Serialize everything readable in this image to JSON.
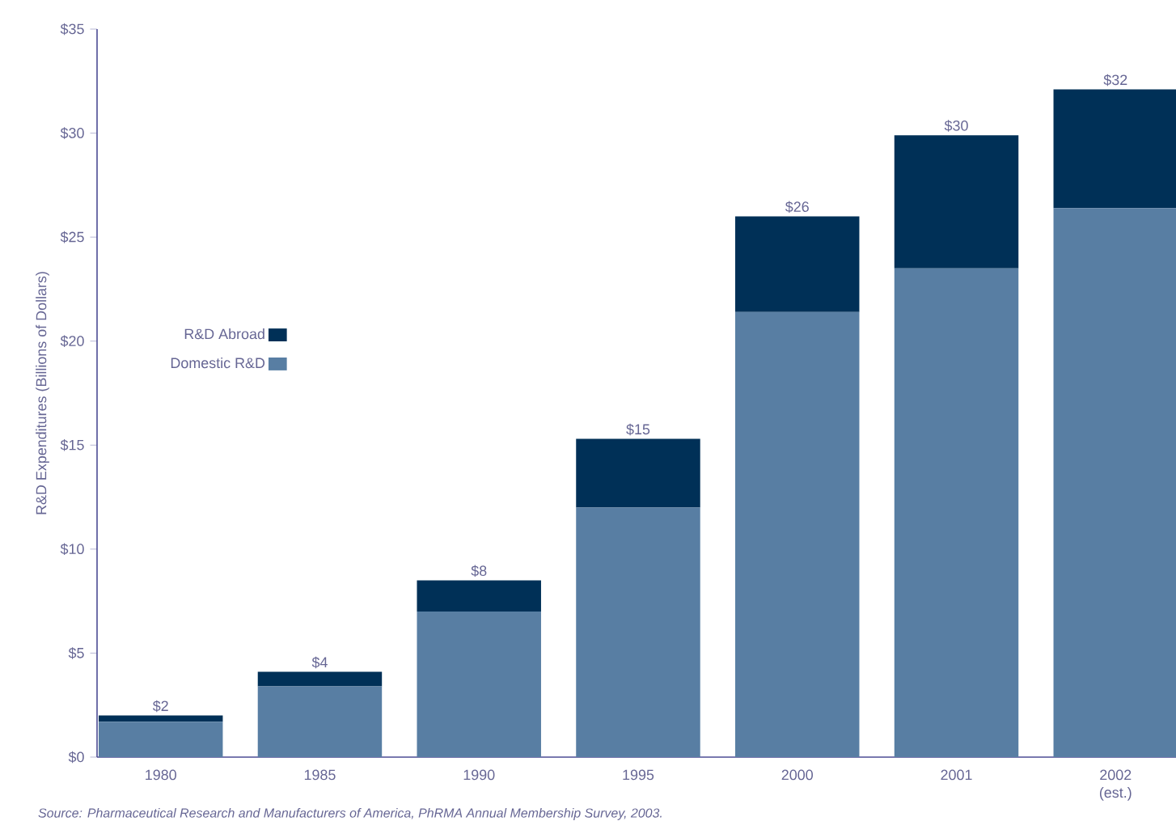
{
  "chart_data": {
    "type": "bar",
    "stacked": true,
    "ylabel": "R&D Expenditures (Billions of Dollars)",
    "categories": [
      "1980",
      "1985",
      "1990",
      "1995",
      "2000",
      "2001",
      "2002 (est.)"
    ],
    "series": [
      {
        "name": "Domestic R&D",
        "color": "#587ea3",
        "values": [
          1.7,
          3.4,
          7.0,
          12.0,
          21.4,
          23.5,
          26.4
        ]
      },
      {
        "name": "R&D Abroad",
        "color": "#003057",
        "values": [
          0.3,
          0.7,
          1.5,
          3.3,
          4.6,
          6.4,
          5.7
        ]
      }
    ],
    "totals": [
      "$2",
      "$4",
      "$8",
      "$15",
      "$26",
      "$30",
      "$32"
    ],
    "ylim": [
      0,
      35
    ],
    "yticks": [
      {
        "value": 0,
        "label": "$0"
      },
      {
        "value": 5,
        "label": "$5"
      },
      {
        "value": 10,
        "label": "$10"
      },
      {
        "value": 15,
        "label": "$15"
      },
      {
        "value": 20,
        "label": "$20"
      },
      {
        "value": 25,
        "label": "$25"
      },
      {
        "value": 30,
        "label": "$30"
      },
      {
        "value": 35,
        "label": "$35"
      }
    ],
    "legend": "left",
    "annotations": [
      "Source: Pharmaceutical Research and Manufacturers of America, PhRMA Annual Membership Survey, 2003."
    ]
  }
}
